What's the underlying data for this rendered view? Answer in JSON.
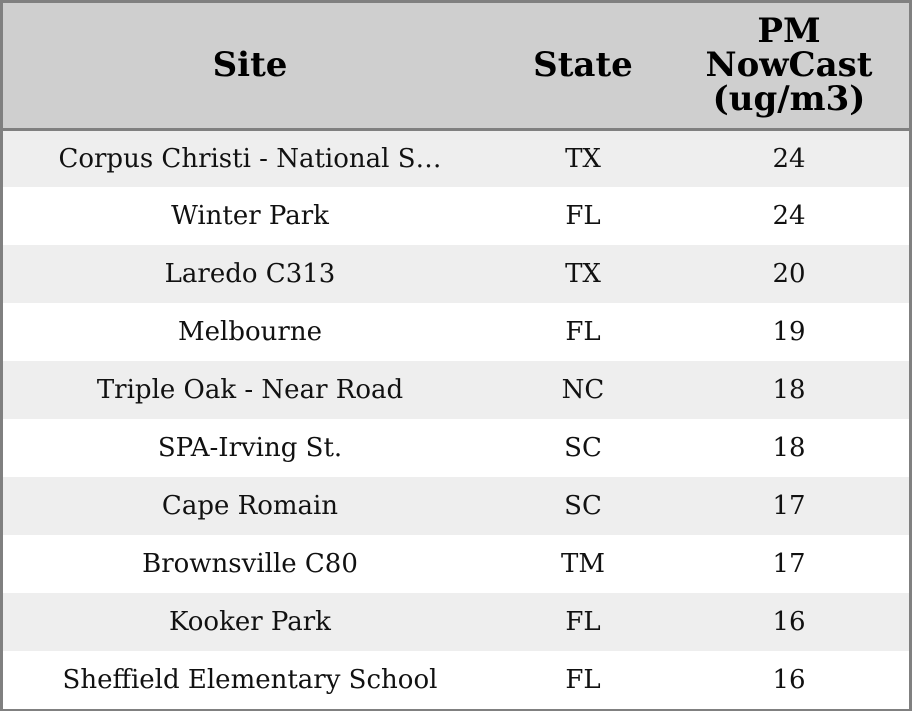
{
  "chart_data": {
    "type": "table",
    "columns": [
      "Site",
      "State",
      "PM NowCast (ug/m3)"
    ],
    "header_lines": [
      [
        "Site"
      ],
      [
        "State"
      ],
      [
        "PM",
        "NowCast",
        "(ug/m3)"
      ]
    ],
    "rows": [
      {
        "site": "Corpus Christi - National S…",
        "state": "TX",
        "pm": 24
      },
      {
        "site": "Winter Park",
        "state": "FL",
        "pm": 24
      },
      {
        "site": "Laredo C313",
        "state": "TX",
        "pm": 20
      },
      {
        "site": "Melbourne",
        "state": "FL",
        "pm": 19
      },
      {
        "site": "Triple Oak - Near Road",
        "state": "NC",
        "pm": 18
      },
      {
        "site": "SPA-Irving St.",
        "state": "SC",
        "pm": 18
      },
      {
        "site": "Cape Romain",
        "state": "SC",
        "pm": 17
      },
      {
        "site": "Brownsville C80",
        "state": "TM",
        "pm": 17
      },
      {
        "site": "Kooker Park",
        "state": "FL",
        "pm": 16
      },
      {
        "site": "Sheffield Elementary School",
        "state": "FL",
        "pm": 16
      }
    ]
  },
  "colors": {
    "header_bg": "#cfcfcf",
    "row_alt_bg": "#eeeeee",
    "row_bg": "#ffffff",
    "border": "#808080"
  }
}
